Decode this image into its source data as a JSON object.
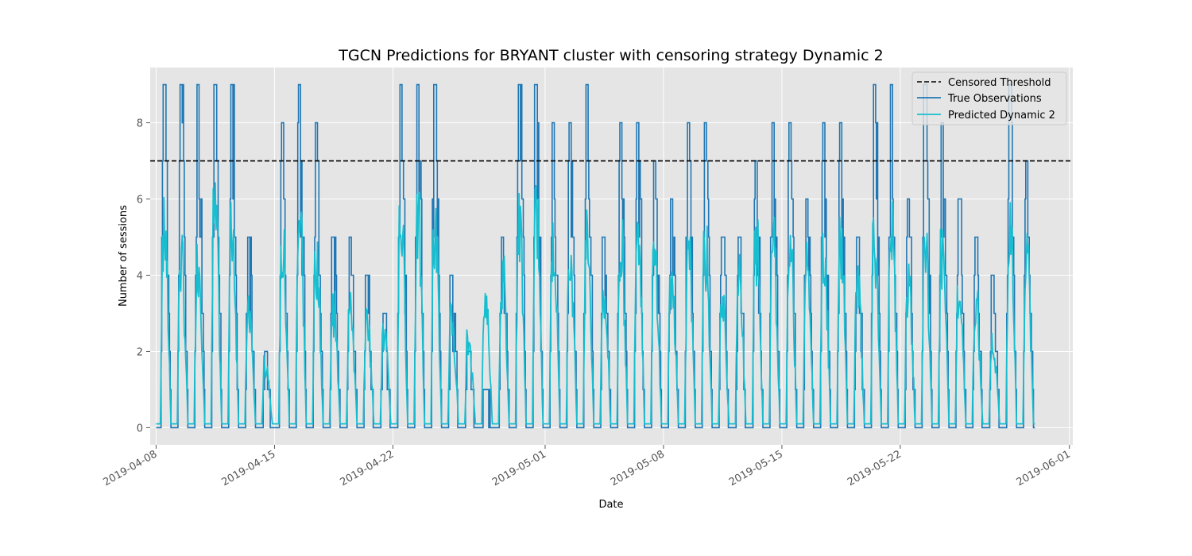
{
  "chart_data": {
    "type": "line",
    "title": "TGCN Predictions for BRYANT cluster with censoring strategy Dynamic 2",
    "xlabel": "Date",
    "ylabel": "Number of sessions",
    "x_axis": {
      "type": "date",
      "start": "2019-04-08",
      "end": "2019-05-30",
      "ticks": [
        "2019-04-08",
        "2019-04-15",
        "2019-04-22",
        "2019-05-01",
        "2019-05-08",
        "2019-05-15",
        "2019-05-22",
        "2019-06-01"
      ],
      "xlim": [
        "2019-04-08",
        "2019-06-01"
      ]
    },
    "y_axis": {
      "ticks": [
        0,
        2,
        4,
        6,
        8
      ],
      "ylim": [
        -0.45,
        9.45
      ]
    },
    "grid": true,
    "legend_position": "top-right",
    "threshold": {
      "name": "Censored Threshold",
      "value": 7,
      "color": "#000000",
      "style": "dashed"
    },
    "series": [
      {
        "name": "True Observations",
        "color": "#1f77b4",
        "daily_peaks": [
          9,
          9,
          9,
          9,
          9,
          5,
          2,
          8,
          9,
          8,
          5,
          5,
          4,
          3,
          9,
          9,
          9,
          4,
          2,
          1,
          5,
          9,
          9,
          8,
          8,
          9,
          5,
          8,
          8,
          7,
          6,
          8,
          8,
          5,
          5,
          7,
          8,
          8,
          6,
          8,
          8,
          5,
          9,
          9,
          6,
          9,
          8,
          6,
          5,
          4,
          9,
          7
        ]
      },
      {
        "name": "Predicted Dynamic 2",
        "color": "#17becf",
        "daily_peaks": [
          6.0,
          5.0,
          5.0,
          6.4,
          6.0,
          3.4,
          1.8,
          5.2,
          6.6,
          5.0,
          3.5,
          3.5,
          3.2,
          2.7,
          6.2,
          6.1,
          5.9,
          3.2,
          2.5,
          3.8,
          4.5,
          6.2,
          6.3,
          5.5,
          5.0,
          5.8,
          4.0,
          5.5,
          6.4,
          5.0,
          4.5,
          5.0,
          5.2,
          3.5,
          4.5,
          5.5,
          5.6,
          5.5,
          4.8,
          5.2,
          5.5,
          4.2,
          5.4,
          6.0,
          4.3,
          5.3,
          5.2,
          3.8,
          3.5,
          2.4,
          6.1,
          5.0
        ]
      }
    ]
  },
  "legend": {
    "threshold_label": "Censored Threshold",
    "true_label": "True Observations",
    "pred_label": "Predicted Dynamic 2"
  },
  "colors": {
    "background": "#e5e5e5",
    "grid": "#ffffff",
    "true_line": "#1f77b4",
    "pred_line": "#17becf",
    "threshold_line": "#000000"
  }
}
